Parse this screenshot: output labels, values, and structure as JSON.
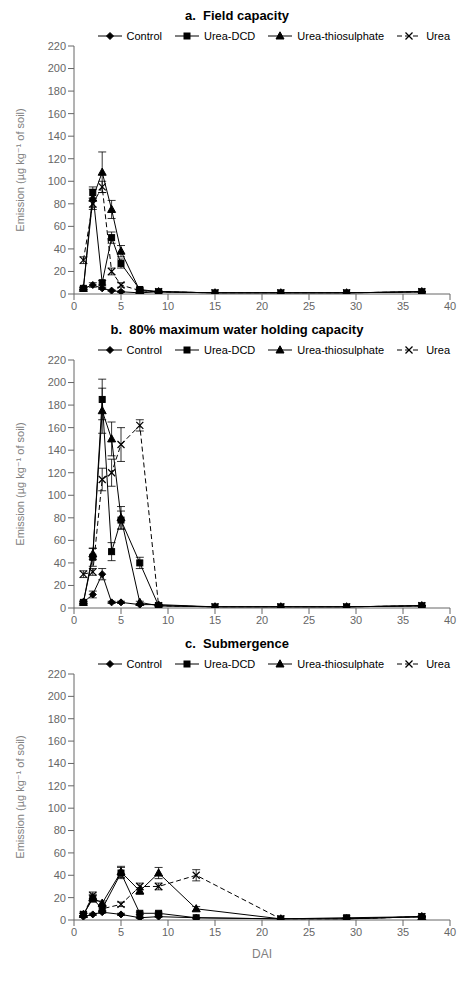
{
  "chart_data": [
    {
      "type": "line",
      "title": "a.  Field capacity",
      "x": [
        1,
        2,
        3,
        4,
        5,
        7,
        9,
        15,
        22,
        29,
        37
      ],
      "series": [
        {
          "name": "Control",
          "color": "#000000",
          "marker": "diamond",
          "line_style": "solid",
          "values": [
            5,
            8,
            5,
            3,
            2,
            1,
            2,
            1,
            1,
            1,
            2
          ],
          "errors": [
            1,
            2,
            1,
            0.5,
            0.5,
            0.3,
            0.5,
            0.3,
            0.3,
            0.3,
            0.3
          ]
        },
        {
          "name": "Urea-DCD",
          "color": "#000000",
          "marker": "square",
          "line_style": "solid",
          "values": [
            5,
            90,
            10,
            50,
            27,
            4,
            2,
            1,
            1,
            1,
            2
          ],
          "errors": [
            1,
            5,
            2,
            5,
            4,
            1,
            0.5,
            0.3,
            0.3,
            0.3,
            0.3
          ]
        },
        {
          "name": "Urea-thiosulphate",
          "color": "#000000",
          "marker": "triangle",
          "line_style": "solid",
          "values": [
            5,
            85,
            108,
            75,
            38,
            3,
            2,
            1,
            1,
            1,
            2
          ],
          "errors": [
            1,
            8,
            18,
            8,
            5,
            1,
            0.5,
            0.3,
            0.3,
            0.3,
            0.3
          ]
        },
        {
          "name": "Urea",
          "color": "#000000",
          "marker": "x",
          "line_style": "dashed",
          "values": [
            30,
            80,
            95,
            20,
            8,
            3,
            2,
            1,
            1,
            1,
            2
          ],
          "errors": [
            3,
            5,
            5,
            3,
            2,
            0.5,
            0.3,
            0.3,
            0.3,
            0.3,
            0.3
          ]
        }
      ],
      "ylabel": "Emission (µg kg⁻¹ of soil)",
      "xlim": [
        0,
        40
      ],
      "xticks": [
        0,
        5,
        10,
        15,
        20,
        25,
        30,
        35,
        40
      ],
      "ylim": [
        0,
        220
      ],
      "yticks": [
        0,
        20,
        40,
        60,
        80,
        100,
        120,
        140,
        160,
        180,
        200,
        220
      ],
      "grid": false,
      "legend": "upper right"
    },
    {
      "type": "line",
      "title": "b.  80% maximum water holding capacity",
      "x": [
        1,
        2,
        3,
        4,
        5,
        7,
        9,
        15,
        22,
        29,
        37
      ],
      "series": [
        {
          "name": "Control",
          "color": "#000000",
          "marker": "diamond",
          "line_style": "solid",
          "values": [
            5,
            12,
            30,
            5,
            5,
            3,
            3,
            1,
            1,
            1,
            2
          ],
          "errors": [
            1,
            3,
            5,
            1,
            1,
            0.5,
            0.5,
            0.3,
            0.3,
            0.3,
            0.3
          ]
        },
        {
          "name": "Urea-DCD",
          "color": "#000000",
          "marker": "square",
          "line_style": "solid",
          "values": [
            5,
            45,
            185,
            50,
            78,
            40,
            2,
            1,
            1,
            1,
            2
          ],
          "errors": [
            1,
            8,
            18,
            8,
            8,
            5,
            0.5,
            0.3,
            0.3,
            0.3,
            0.3
          ]
        },
        {
          "name": "Urea-thiosulphate",
          "color": "#000000",
          "marker": "triangle",
          "line_style": "solid",
          "values": [
            5,
            48,
            175,
            150,
            80,
            5,
            2,
            1,
            1,
            1,
            2
          ],
          "errors": [
            1,
            5,
            20,
            15,
            10,
            1,
            0.3,
            0.3,
            0.3,
            0.3,
            0.3
          ]
        },
        {
          "name": "Urea",
          "color": "#000000",
          "marker": "x",
          "line_style": "dashed",
          "values": [
            30,
            32,
            114,
            120,
            145,
            162,
            2,
            1,
            1,
            1,
            2
          ],
          "errors": [
            3,
            3,
            10,
            12,
            15,
            5,
            0.3,
            0.3,
            0.3,
            0.3,
            0.3
          ]
        }
      ],
      "ylabel": "Emission (µg kg⁻¹ of soil)",
      "xlim": [
        0,
        40
      ],
      "xticks": [
        0,
        5,
        10,
        15,
        20,
        25,
        30,
        35,
        40
      ],
      "ylim": [
        0,
        220
      ],
      "yticks": [
        0,
        20,
        40,
        60,
        80,
        100,
        120,
        140,
        160,
        180,
        200,
        220
      ],
      "grid": false,
      "legend": "upper right"
    },
    {
      "type": "line",
      "title": "c.  Submergence",
      "x": [
        1,
        2,
        3,
        5,
        7,
        9,
        13,
        22,
        29,
        37
      ],
      "series": [
        {
          "name": "Control",
          "color": "#000000",
          "marker": "diamond",
          "line_style": "solid",
          "values": [
            3,
            5,
            7,
            5,
            2,
            3,
            2,
            1,
            1,
            3
          ],
          "errors": [
            0.5,
            1,
            1,
            1,
            0.5,
            0.5,
            0.3,
            0.3,
            0.3,
            0.5
          ]
        },
        {
          "name": "Urea-DCD",
          "color": "#000000",
          "marker": "square",
          "line_style": "solid",
          "values": [
            5,
            19,
            10,
            42,
            6,
            6,
            2,
            1,
            2,
            3
          ],
          "errors": [
            1,
            3,
            2,
            5,
            1,
            1,
            0.3,
            0.3,
            0.3,
            0.5
          ]
        },
        {
          "name": "Urea-thiosulphate",
          "color": "#000000",
          "marker": "triangle",
          "line_style": "solid",
          "values": [
            5,
            20,
            15,
            43,
            26,
            42,
            10,
            1,
            1,
            3
          ],
          "errors": [
            1,
            3,
            2,
            5,
            3,
            5,
            2,
            0.3,
            0.3,
            0.5
          ]
        },
        {
          "name": "Urea",
          "color": "#000000",
          "marker": "x",
          "line_style": "dashed",
          "values": [
            5,
            22,
            10,
            14,
            30,
            30,
            40,
            1,
            1,
            3
          ],
          "errors": [
            1,
            3,
            2,
            2,
            3,
            3,
            5,
            0.3,
            0.3,
            0.5
          ]
        }
      ],
      "ylabel": "Emission (µg kg⁻¹ of soil)",
      "xlabel": "DAI",
      "xlim": [
        0,
        40
      ],
      "xticks": [
        0,
        5,
        10,
        15,
        20,
        25,
        30,
        35,
        40
      ],
      "ylim": [
        0,
        220
      ],
      "yticks": [
        0,
        20,
        40,
        60,
        80,
        100,
        120,
        140,
        160,
        180,
        200,
        220
      ],
      "grid": false,
      "legend": "upper right"
    }
  ]
}
